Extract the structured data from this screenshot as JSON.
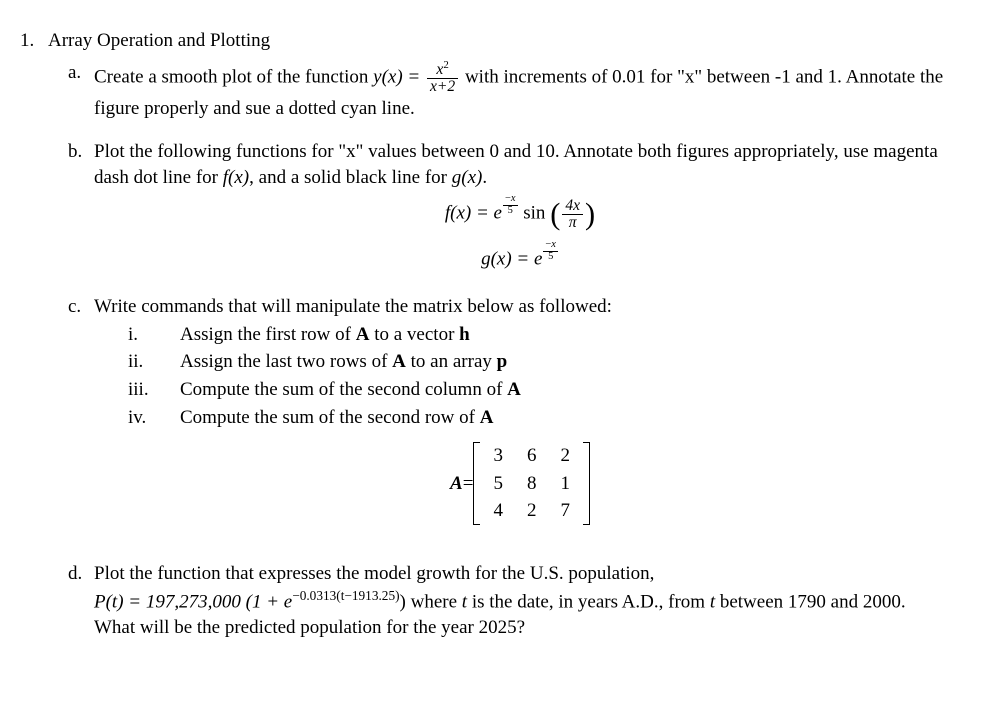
{
  "q1": {
    "num": "1.",
    "title": "Array Operation and Plotting",
    "a": {
      "num": "a.",
      "text_1": "Create a smooth plot of the function ",
      "eq_lhs": "y(x) = ",
      "frac_num": "x",
      "frac_num_sup": "2",
      "frac_den": "x+2",
      "text_2": " with increments of 0.01 for \"x\" between -1 and 1. Annotate the figure properly and sue a dotted cyan line."
    },
    "b": {
      "num": "b.",
      "text_1": "Plot the following functions for \"x\" values between 0 and 10.   Annotate both figures appropriately, use magenta dash dot line for ",
      "fx": "f(x)",
      "text_mid": ", and a solid black line for ",
      "gx": "g(x)",
      "text_end": ".",
      "eq_f_lhs": "f(x) = e",
      "eq_f_exp_num": "x",
      "eq_f_exp_den": "5",
      "eq_f_sin": " sin ",
      "eq_f_inner_num": "4x",
      "eq_f_inner_den": "π",
      "eq_g_lhs": "g(x) = e",
      "eq_g_exp_num": "x",
      "eq_g_exp_den": "5"
    },
    "c": {
      "num": "c.",
      "text": "Write commands that will manipulate the matrix below as followed:",
      "items": [
        {
          "num": "i.",
          "a": "Assign the first row of ",
          "b": "A",
          "c": " to a vector ",
          "d": "h"
        },
        {
          "num": "ii.",
          "a": "Assign the last two rows of ",
          "b": "A",
          "c": " to an array ",
          "d": "p"
        },
        {
          "num": "iii.",
          "a": "Compute the sum of the second column of ",
          "b": "A",
          "c": "",
          "d": ""
        },
        {
          "num": "iv.",
          "a": "Compute the sum of the second row of ",
          "b": "A",
          "c": "",
          "d": ""
        }
      ],
      "matrix_label_lhs": "A",
      "matrix_label_eq": " = ",
      "matrix": [
        [
          "3",
          "6",
          "2"
        ],
        [
          "5",
          "8",
          "1"
        ],
        [
          "4",
          "2",
          "7"
        ]
      ]
    },
    "d": {
      "num": "d.",
      "text_1": "Plot the function that expresses the model growth for the U.S. population,",
      "eq_lhs": "P(t) = 197,273,000 (1 + e",
      "eq_exp": "−0.0313(t−1913.25)",
      "eq_rhs": ")",
      "text_2": " where ",
      "var_t": "t",
      "text_3": " is the date, in years A.D., from ",
      "var_t2": "t",
      "text_4": " between 1790 and 2000.  What will be the predicted population for the year 2025?"
    }
  }
}
